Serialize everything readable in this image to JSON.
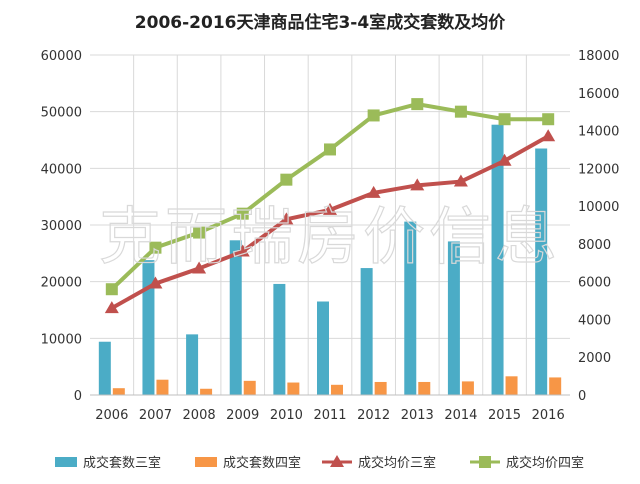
{
  "chart_data": {
    "type": "bar",
    "title": "2006-2016天津商品住宅3-4室成交套数及均价",
    "categories": [
      "2006",
      "2007",
      "2008",
      "2009",
      "2010",
      "2011",
      "2012",
      "2013",
      "2014",
      "2015",
      "2016"
    ],
    "y_left": {
      "min": 0,
      "max": 60000,
      "ticks": [
        "0",
        "10000",
        "20000",
        "30000",
        "40000",
        "50000",
        "60000"
      ]
    },
    "y_right": {
      "min": 0,
      "max": 18000,
      "ticks": [
        "0",
        "2000",
        "4000",
        "6000",
        "8000",
        "10000",
        "12000",
        "14000",
        "16000",
        "18000"
      ]
    },
    "grid": true,
    "legend_position": "bottom",
    "bar_series": [
      {
        "name": "成交套数三室",
        "color": "#4bacc6",
        "axis": "left",
        "values": [
          9400,
          23800,
          10700,
          27300,
          19600,
          16500,
          22400,
          30600,
          27100,
          47700,
          43500
        ]
      },
      {
        "name": "成交套数四室",
        "color": "#f79646",
        "axis": "left",
        "values": [
          1200,
          2700,
          1100,
          2500,
          2200,
          1800,
          2300,
          2300,
          2400,
          3300,
          3100
        ]
      }
    ],
    "line_series": [
      {
        "name": "成交均价三室",
        "color": "#c0504d",
        "marker": "triangle",
        "axis": "right",
        "values": [
          4600,
          5900,
          6700,
          7600,
          9300,
          9800,
          10700,
          11100,
          11300,
          12400,
          13700
        ]
      },
      {
        "name": "成交均价四室",
        "color": "#9bbb59",
        "marker": "square",
        "axis": "right",
        "values": [
          5600,
          7800,
          8600,
          9600,
          11400,
          13000,
          14800,
          15400,
          15000,
          14600,
          14600
        ]
      }
    ]
  },
  "watermark": {
    "text": "克而瑞房价信息"
  }
}
